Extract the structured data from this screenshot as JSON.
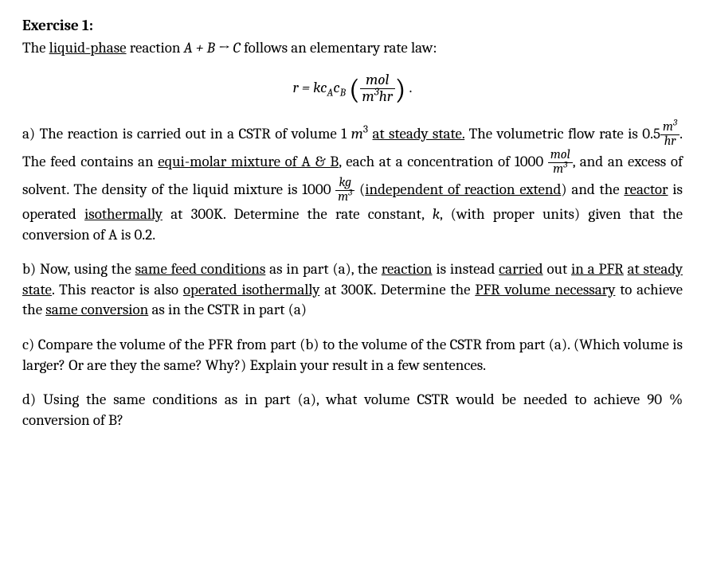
{
  "title": "Exercise 1:",
  "intro_pre": "The ",
  "intro_u1": "liquid-phase",
  "intro_post": " reaction ",
  "reaction": "A + B → C",
  "intro_tail": " follows an elementary rate law:",
  "eq_r": "r",
  "eq_eq": " = ",
  "eq_k": "k",
  "eq_cA": "c",
  "eq_A": "A",
  "eq_cB": "c",
  "eq_B": "B",
  "eq_mol": "mol",
  "eq_m": "m",
  "eq_3": "3",
  "eq_hr": "hr",
  "eq_period": " .",
  "a_1": "a) The reaction is carried out in a CSTR of volume 1 ",
  "a_m": "m",
  "a_3": "3",
  "a_u1": "at steady state.",
  "a_2": "  The volumetric flow rate is 0.5",
  "a_fr1_num_m": "m",
  "a_fr1_num_3": "3",
  "a_fr1_den": "hr",
  "a_3txt": ". The feed contains an ",
  "a_u2": "equi-molar mixture of A & B",
  "a_4": ", each at a concentration of 1000 ",
  "a_fr2_num": "mol",
  "a_fr2_den_m": "m",
  "a_fr2_den_3": "3",
  "a_5": ", and an excess of solvent. The density of the liquid mixture is 1000 ",
  "a_fr3_num": "kg",
  "a_fr3_den_m": "m",
  "a_fr3_den_3": "3",
  "a_6": " (",
  "a_u3": "independent of reaction extend",
  "a_7": ") and the ",
  "a_u4": "reactor",
  "a_8": " is operated ",
  "a_u5": "isothermally",
  "a_9": " at 300K. Determine the rate constant, ",
  "a_k": "k",
  "a_10": ", (with proper units) given that the conversion of A is 0.2.",
  "b_1": "b) Now, using the ",
  "b_u1": "same feed conditions",
  "b_2": " as in part (a), the ",
  "b_u2": "reaction",
  "b_3": " is instead ",
  "b_u3": "carried",
  "b_4": " out ",
  "b_u4": "in a PFR",
  "b_5": " ",
  "b_u5": "at steady state",
  "b_6": ". This reactor is also ",
  "b_u6": "operated isothermally",
  "b_7": " at 300K. Determine the ",
  "b_u7": "PFR volume necessary",
  "b_8": " to achieve the ",
  "b_u8": "same conversion",
  "b_9": " as in the CSTR in part (a)",
  "c_1": "c) Compare the volume of the PFR from part (b) to the volume of the CSTR from part (a). (Which volume is larger? Or are they the same? Why?) Explain your result in a few sentences.",
  "d_1": "d) Using the same conditions as in part (a), what volume CSTR would be needed to achieve 90 % conversion of B?"
}
